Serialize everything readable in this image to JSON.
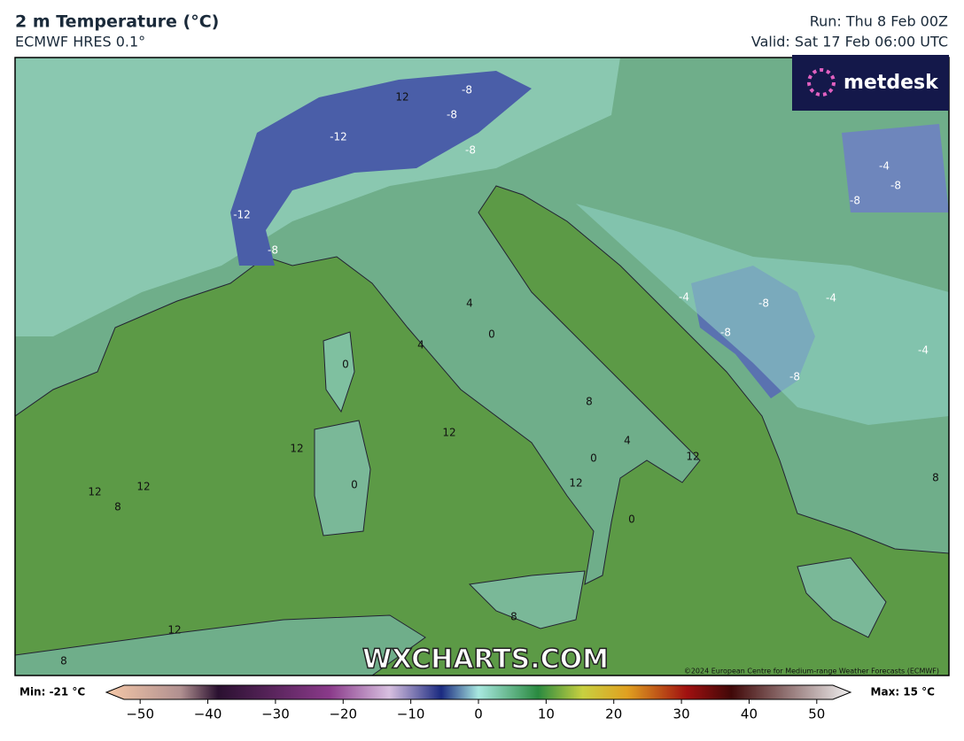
{
  "header": {
    "title": "2 m Temperature (°C)",
    "subtitle": "ECMWF HRES 0.1°",
    "run": "Run: Thu 8 Feb 00Z",
    "valid": "Valid: Sat 17 Feb 06:00 UTC"
  },
  "logo": "metdesk",
  "watermark": "WXCHARTS.COM",
  "copyright": "©2024 European Centre for Medium-range Weather Forecasts (ECMWF)",
  "contour_labels": [
    "12",
    "-8",
    "-8",
    "-8",
    "-12",
    "-12",
    "-8",
    "-8",
    "-8",
    "-8",
    "-8",
    "-8",
    "8",
    "12",
    "12",
    "12",
    "12",
    "12",
    "12",
    "12",
    "0",
    "0",
    "0",
    "0",
    "0",
    "4",
    "4",
    "4",
    "8",
    "8",
    "8",
    "8",
    "-4",
    "-4",
    "-4",
    "-4"
  ],
  "colorbar": {
    "min_label": "Min: -21 °C",
    "max_label": "Max: 15 °C",
    "lim": [
      -55,
      55
    ],
    "ticks": [
      {
        "value": -50,
        "label": "−50"
      },
      {
        "value": -40,
        "label": "−40"
      },
      {
        "value": -30,
        "label": "−30"
      },
      {
        "value": -20,
        "label": "−20"
      },
      {
        "value": -10,
        "label": "−10"
      },
      0,
      10,
      20,
      30,
      40,
      50
    ]
  }
}
